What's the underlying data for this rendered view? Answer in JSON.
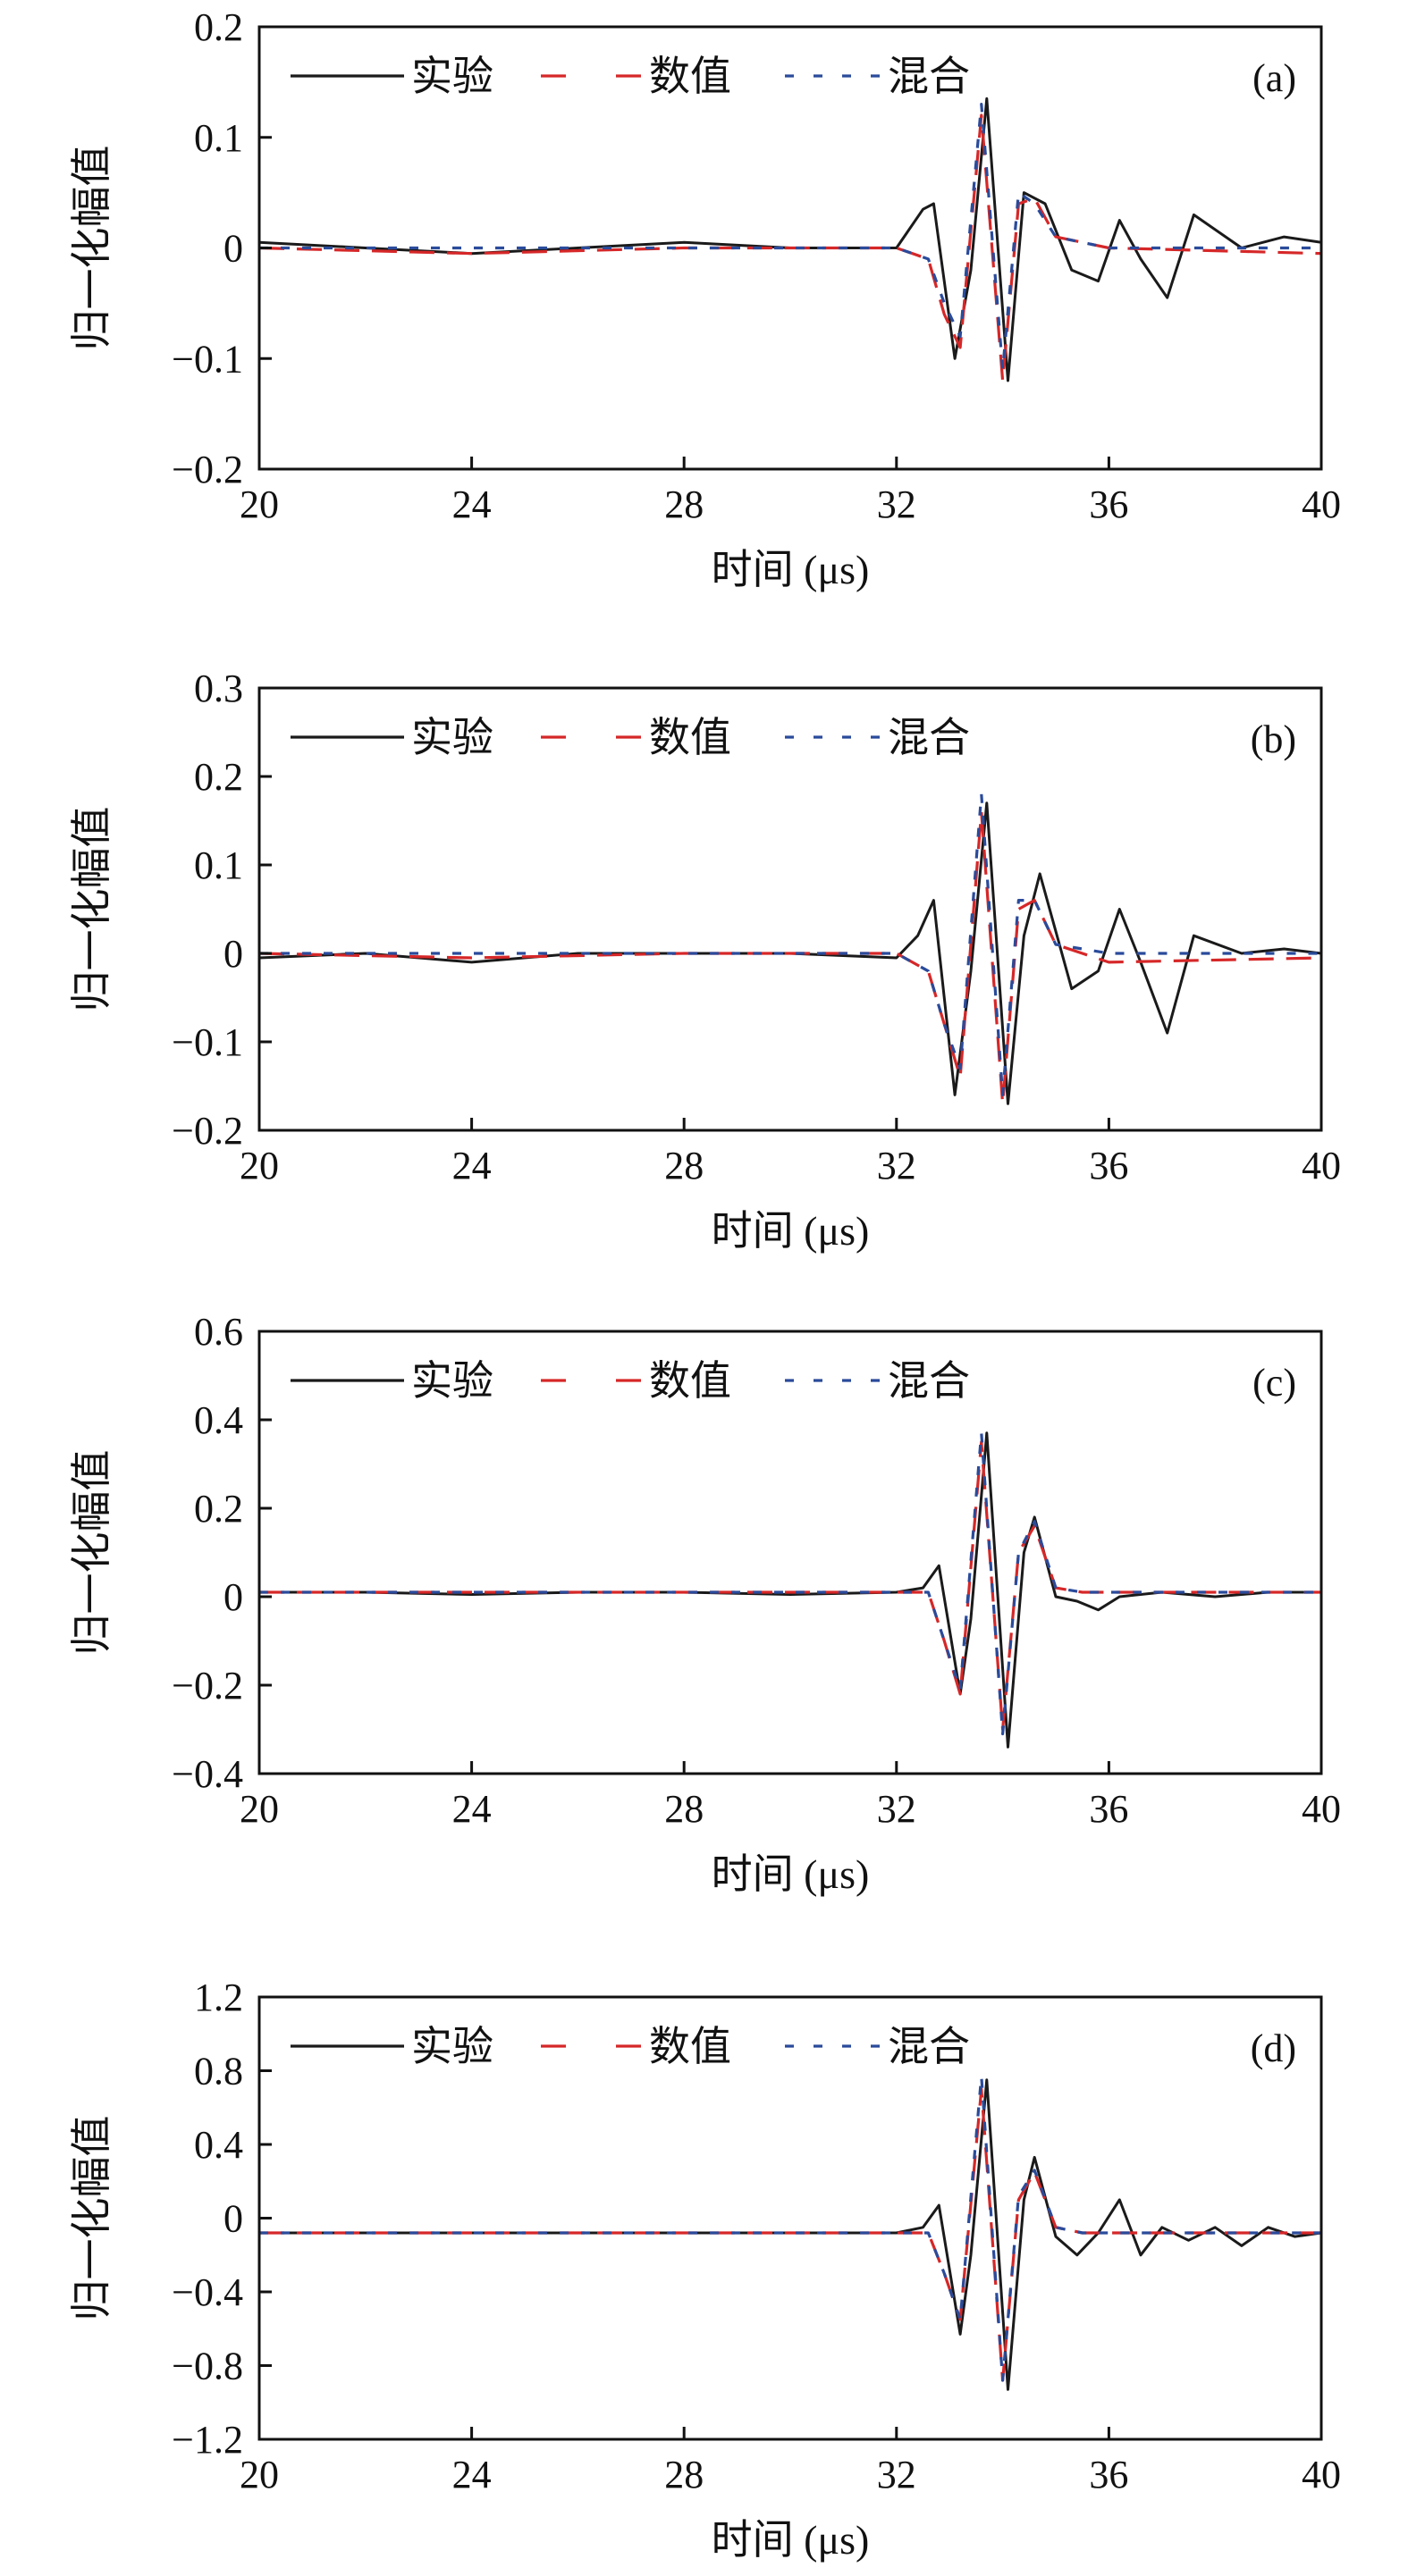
{
  "figure": {
    "legend": [
      "实验",
      "数值",
      "混合"
    ],
    "colors": {
      "实验": "#1a1a1a",
      "数值": "#d62728",
      "混合": "#2a4b9b"
    }
  },
  "chart_data": [
    {
      "type": "line",
      "panel_label": "(a)",
      "xlabel": "时间 (μs)",
      "ylabel": "归一化幅值",
      "xlim": [
        20,
        40
      ],
      "ylim": [
        -0.2,
        0.2
      ],
      "xticks": [
        "20",
        "24",
        "28",
        "32",
        "36",
        "40"
      ],
      "yticks": [
        "−0.2",
        "−0.1",
        "0",
        "0.1",
        "0.2"
      ],
      "ytick_values": [
        -0.2,
        -0.1,
        0,
        0.1,
        0.2
      ],
      "legend_position": "top",
      "series": [
        {
          "name": "实验",
          "style": "solid",
          "color": "#1a1a1a",
          "x": [
            20,
            22,
            24,
            26,
            28,
            30,
            32,
            32.5,
            32.7,
            33.1,
            33.4,
            33.7,
            34.1,
            34.4,
            34.8,
            35.3,
            35.8,
            36.2,
            36.6,
            37.1,
            37.6,
            38.5,
            39.3,
            40
          ],
          "y": [
            0.005,
            0,
            -0.005,
            0,
            0.005,
            0,
            0,
            0.035,
            0.04,
            -0.1,
            -0.02,
            0.135,
            -0.12,
            0.05,
            0.04,
            -0.02,
            -0.03,
            0.025,
            -0.01,
            -0.045,
            0.03,
            0,
            0.01,
            0.005
          ]
        },
        {
          "name": "数值",
          "style": "dashed",
          "color": "#d62728",
          "x": [
            20,
            24,
            28,
            32,
            32.6,
            32.9,
            33.2,
            33.6,
            34.0,
            34.3,
            34.6,
            35.0,
            35.5,
            36,
            40
          ],
          "y": [
            0,
            -0.005,
            0,
            0,
            -0.01,
            -0.06,
            -0.09,
            0.12,
            -0.12,
            0.04,
            0.045,
            0.01,
            0.005,
            0,
            -0.005
          ]
        },
        {
          "name": "混合",
          "style": "dotted",
          "color": "#2a4b9b",
          "x": [
            20,
            24,
            28,
            32,
            32.6,
            32.9,
            33.2,
            33.6,
            34.0,
            34.3,
            34.6,
            35.0,
            35.5,
            36,
            40
          ],
          "y": [
            0,
            0,
            0,
            0,
            -0.01,
            -0.05,
            -0.08,
            0.13,
            -0.11,
            0.05,
            0.04,
            0.01,
            0.005,
            0,
            0
          ]
        }
      ]
    },
    {
      "type": "line",
      "panel_label": "(b)",
      "xlabel": "时间 (μs)",
      "ylabel": "归一化幅值",
      "xlim": [
        20,
        40
      ],
      "ylim": [
        -0.2,
        0.3
      ],
      "xticks": [
        "20",
        "24",
        "28",
        "32",
        "36",
        "40"
      ],
      "yticks": [
        "−0.2",
        "−0.1",
        "0",
        "0.1",
        "0.2",
        "0.3"
      ],
      "ytick_values": [
        -0.2,
        -0.1,
        0,
        0.1,
        0.2,
        0.3
      ],
      "legend_position": "top",
      "series": [
        {
          "name": "实验",
          "style": "solid",
          "color": "#1a1a1a",
          "x": [
            20,
            22,
            24,
            26,
            28,
            30,
            32,
            32.4,
            32.7,
            33.1,
            33.4,
            33.7,
            34.1,
            34.4,
            34.7,
            35.3,
            35.8,
            36.2,
            36.6,
            37.1,
            37.6,
            38.5,
            39.3,
            40
          ],
          "y": [
            -0.005,
            0,
            -0.01,
            0,
            0,
            0,
            -0.005,
            0.02,
            0.06,
            -0.16,
            -0.02,
            0.17,
            -0.17,
            0.02,
            0.09,
            -0.04,
            -0.02,
            0.05,
            -0.01,
            -0.09,
            0.02,
            0,
            0.005,
            0
          ]
        },
        {
          "name": "数值",
          "style": "dashed",
          "color": "#d62728",
          "x": [
            20,
            24,
            28,
            32,
            32.6,
            32.9,
            33.2,
            33.6,
            34.0,
            34.3,
            34.6,
            35.0,
            35.5,
            36,
            40
          ],
          "y": [
            0,
            -0.005,
            0,
            0,
            -0.02,
            -0.08,
            -0.14,
            0.16,
            -0.17,
            0.05,
            0.06,
            0.01,
            0.0,
            -0.01,
            -0.005
          ]
        },
        {
          "name": "混合",
          "style": "dotted",
          "color": "#2a4b9b",
          "x": [
            20,
            24,
            28,
            32,
            32.6,
            32.9,
            33.2,
            33.6,
            34.0,
            34.3,
            34.6,
            35.0,
            35.5,
            36,
            40
          ],
          "y": [
            0,
            0,
            0,
            0,
            -0.02,
            -0.08,
            -0.13,
            0.18,
            -0.16,
            0.06,
            0.06,
            0.01,
            0.005,
            0,
            0
          ]
        }
      ]
    },
    {
      "type": "line",
      "panel_label": "(c)",
      "xlabel": "时间 (μs)",
      "ylabel": "归一化幅值",
      "xlim": [
        20,
        40
      ],
      "ylim": [
        -0.4,
        0.6
      ],
      "xticks": [
        "20",
        "24",
        "28",
        "32",
        "36",
        "40"
      ],
      "yticks": [
        "−0.4",
        "−0.2",
        "0",
        "0.2",
        "0.4",
        "0.6"
      ],
      "ytick_values": [
        -0.4,
        -0.2,
        0,
        0.2,
        0.4,
        0.6
      ],
      "legend_position": "top",
      "series": [
        {
          "name": "实验",
          "style": "solid",
          "color": "#1a1a1a",
          "x": [
            20,
            22,
            24,
            26,
            28,
            30,
            32,
            32.5,
            32.8,
            33.2,
            33.4,
            33.7,
            34.1,
            34.4,
            34.6,
            35.0,
            35.4,
            35.8,
            36.2,
            37,
            38,
            39,
            40
          ],
          "y": [
            0.01,
            0.01,
            0.005,
            0.01,
            0.01,
            0.005,
            0.01,
            0.02,
            0.07,
            -0.22,
            -0.05,
            0.37,
            -0.34,
            0.1,
            0.18,
            0.0,
            -0.01,
            -0.03,
            0.0,
            0.01,
            0.0,
            0.01,
            0.01
          ]
        },
        {
          "name": "数值",
          "style": "dashed",
          "color": "#d62728",
          "x": [
            20,
            24,
            28,
            32,
            32.6,
            32.9,
            33.2,
            33.6,
            34.0,
            34.3,
            34.6,
            35.0,
            35.5,
            36,
            40
          ],
          "y": [
            0.01,
            0.01,
            0.01,
            0.01,
            0.01,
            -0.1,
            -0.22,
            0.35,
            -0.3,
            0.1,
            0.16,
            0.02,
            0.01,
            0.01,
            0.01
          ]
        },
        {
          "name": "混合",
          "style": "dotted",
          "color": "#2a4b9b",
          "x": [
            20,
            24,
            28,
            32,
            32.6,
            32.9,
            33.2,
            33.6,
            34.0,
            34.3,
            34.6,
            35.0,
            35.5,
            36,
            40
          ],
          "y": [
            0.01,
            0.01,
            0.01,
            0.01,
            0.01,
            -0.1,
            -0.21,
            0.37,
            -0.31,
            0.1,
            0.17,
            0.02,
            0.01,
            0.01,
            0.01
          ]
        }
      ]
    },
    {
      "type": "line",
      "panel_label": "(d)",
      "xlabel": "时间 (μs)",
      "ylabel": "归一化幅值",
      "xlim": [
        20,
        40
      ],
      "ylim": [
        -1.2,
        1.2
      ],
      "xticks": [
        "20",
        "24",
        "28",
        "32",
        "36",
        "40"
      ],
      "yticks": [
        "−1.2",
        "−0.8",
        "−0.4",
        "0",
        "0.4",
        "0.8",
        "1.2"
      ],
      "ytick_values": [
        -1.2,
        -0.8,
        -0.4,
        0,
        0.4,
        0.8,
        1.2
      ],
      "legend_position": "top",
      "series": [
        {
          "name": "实验",
          "style": "solid",
          "color": "#1a1a1a",
          "x": [
            20,
            22,
            24,
            26,
            28,
            30,
            32,
            32.5,
            32.8,
            33.2,
            33.4,
            33.7,
            34.1,
            34.4,
            34.6,
            35.0,
            35.4,
            35.8,
            36.2,
            36.6,
            37.0,
            37.5,
            38,
            38.5,
            39,
            39.5,
            40
          ],
          "y": [
            -0.08,
            -0.08,
            -0.08,
            -0.08,
            -0.08,
            -0.08,
            -0.08,
            -0.05,
            0.07,
            -0.63,
            -0.2,
            0.75,
            -0.93,
            0.1,
            0.33,
            -0.1,
            -0.2,
            -0.08,
            0.1,
            -0.2,
            -0.05,
            -0.12,
            -0.05,
            -0.15,
            -0.05,
            -0.1,
            -0.08
          ]
        },
        {
          "name": "数值",
          "style": "dashed",
          "color": "#d62728",
          "x": [
            20,
            24,
            28,
            32,
            32.6,
            32.9,
            33.2,
            33.6,
            34.0,
            34.3,
            34.6,
            35.0,
            35.5,
            36,
            40
          ],
          "y": [
            -0.08,
            -0.08,
            -0.08,
            -0.08,
            -0.08,
            -0.3,
            -0.55,
            0.7,
            -0.88,
            0.1,
            0.25,
            -0.05,
            -0.08,
            -0.08,
            -0.08
          ]
        },
        {
          "name": "混合",
          "style": "dotted",
          "color": "#2a4b9b",
          "x": [
            20,
            24,
            28,
            32,
            32.6,
            32.9,
            33.2,
            33.6,
            34.0,
            34.3,
            34.6,
            35.0,
            35.5,
            36,
            40
          ],
          "y": [
            -0.08,
            -0.08,
            -0.08,
            -0.08,
            -0.08,
            -0.3,
            -0.55,
            0.77,
            -0.88,
            0.12,
            0.26,
            -0.05,
            -0.08,
            -0.08,
            -0.08
          ]
        }
      ]
    }
  ]
}
